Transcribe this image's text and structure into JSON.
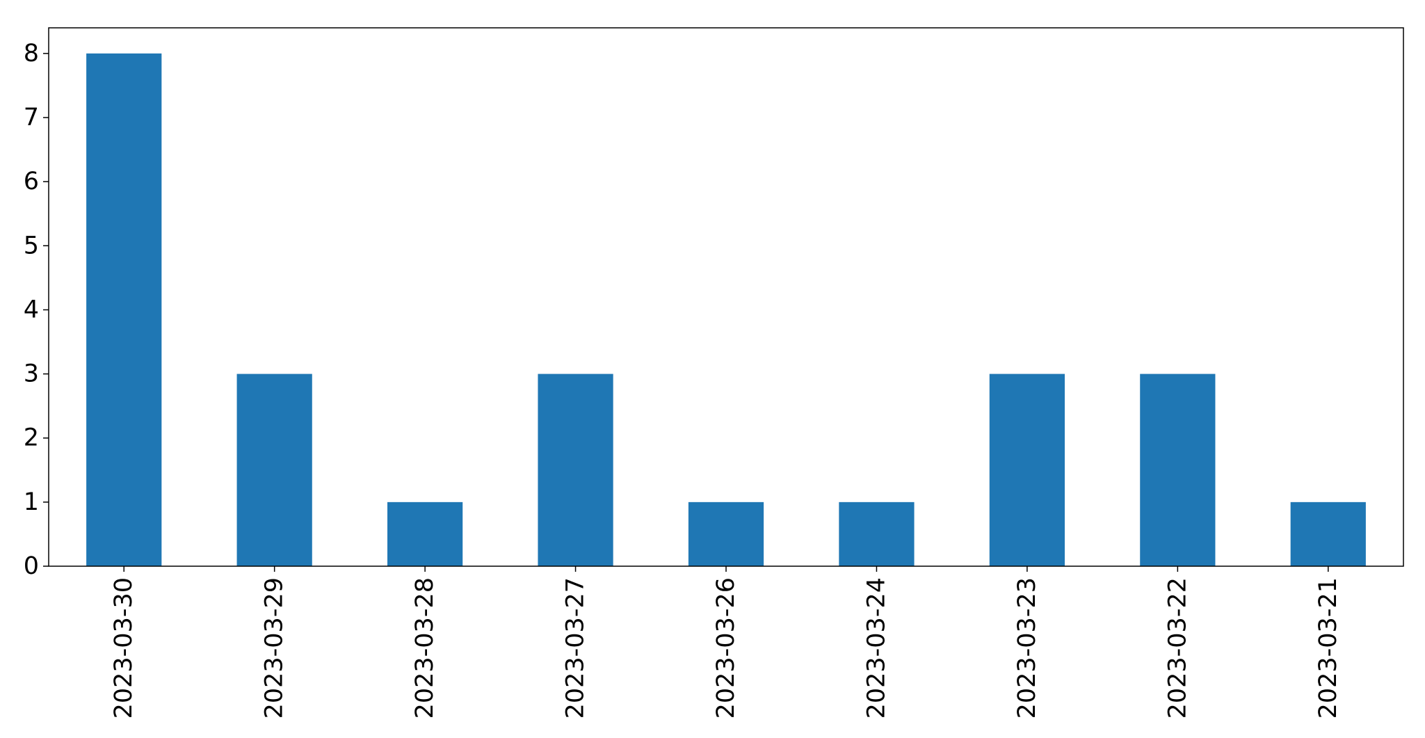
{
  "chart_data": {
    "type": "bar",
    "title": "",
    "xlabel": "",
    "ylabel": "",
    "categories": [
      "2023-03-30",
      "2023-03-29",
      "2023-03-28",
      "2023-03-27",
      "2023-03-26",
      "2023-03-24",
      "2023-03-23",
      "2023-03-22",
      "2023-03-21"
    ],
    "values": [
      8,
      3,
      1,
      3,
      1,
      1,
      3,
      3,
      1
    ],
    "ylim": [
      0,
      8.4
    ],
    "yticks": [
      "0",
      "1",
      "2",
      "3",
      "4",
      "5",
      "6",
      "7",
      "8"
    ],
    "grid": false,
    "legend": "none",
    "colors": {
      "bar": "#1f77b4",
      "axis": "#000000",
      "background": "#ffffff"
    }
  }
}
